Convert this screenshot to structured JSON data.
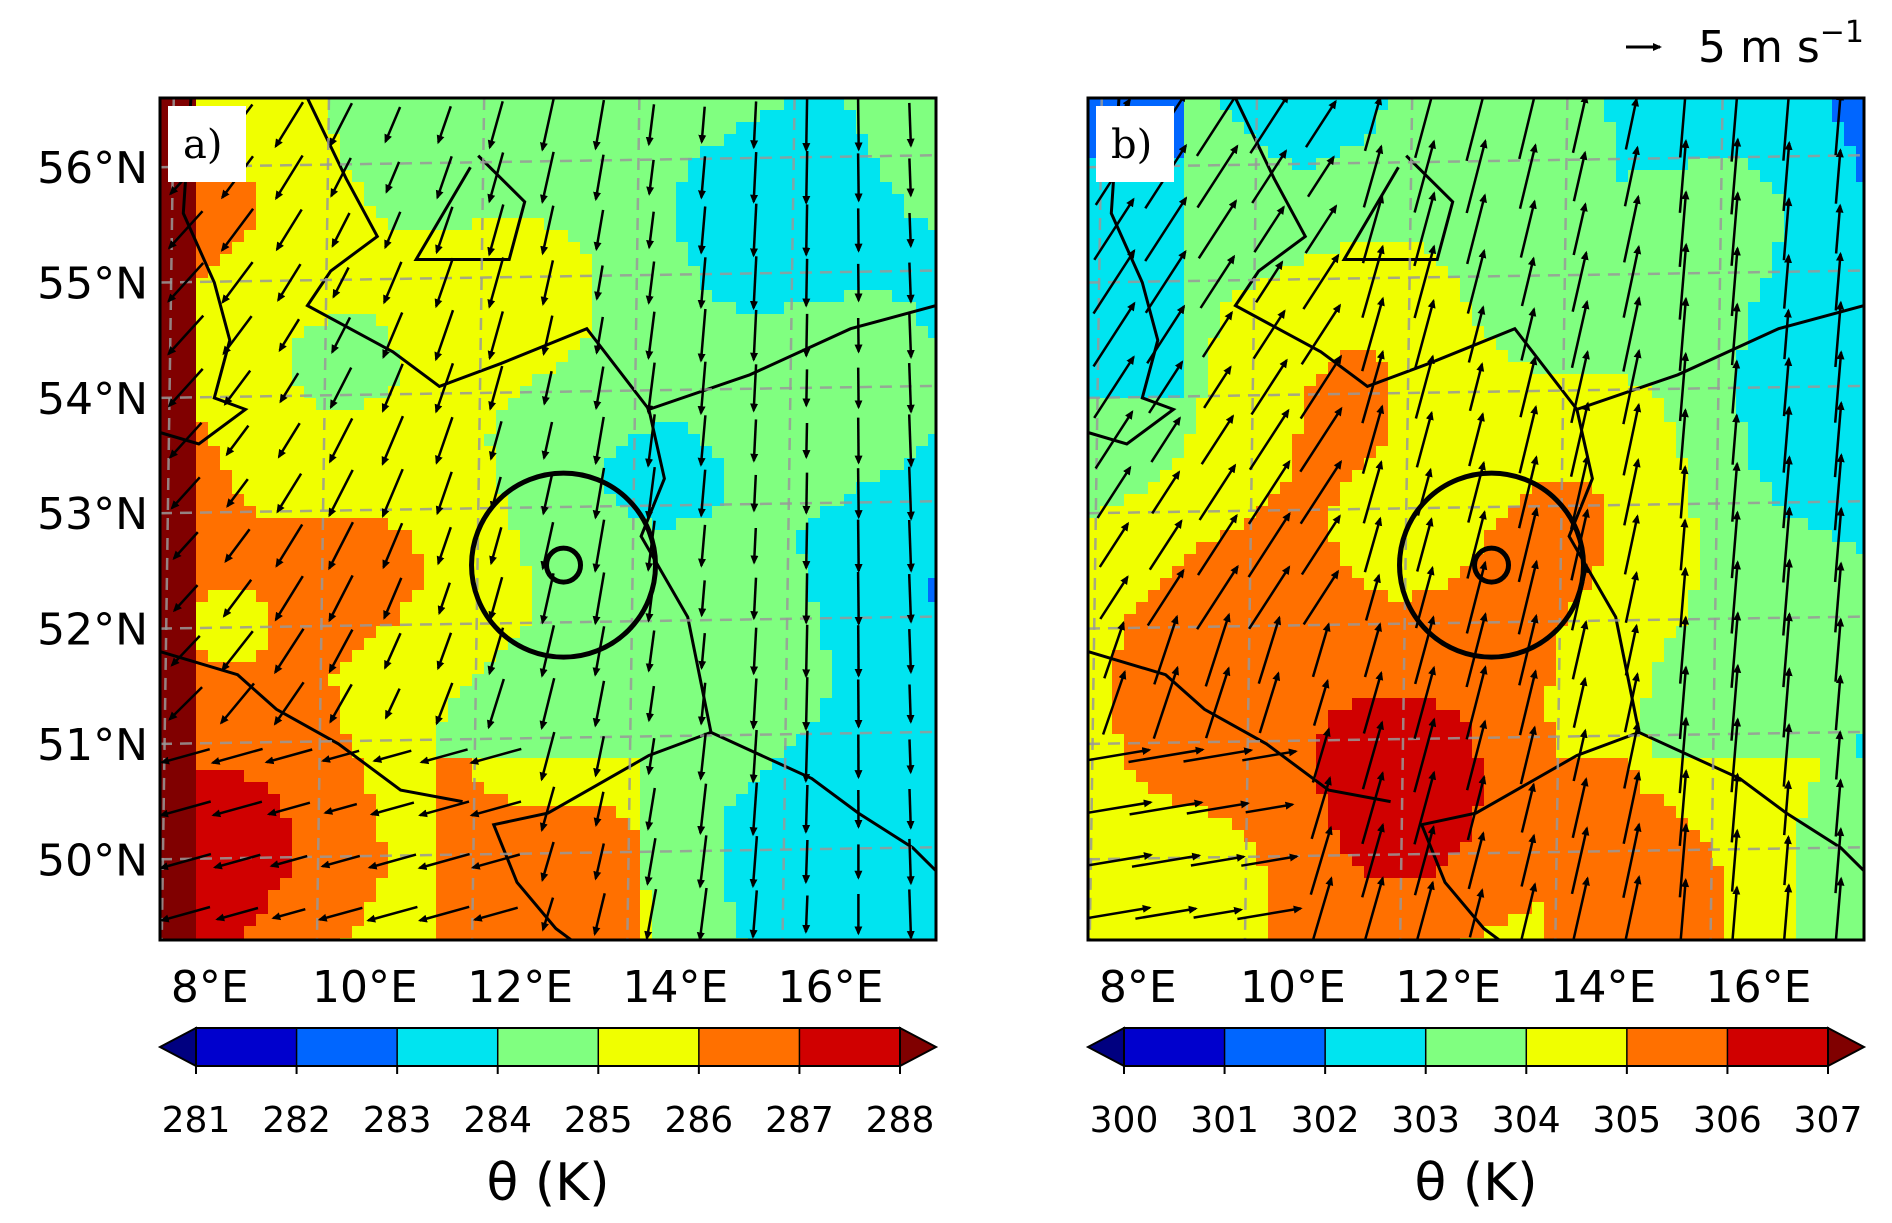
{
  "figure": {
    "key": {
      "text": "5 m s",
      "sup": "−1"
    },
    "panels": [
      {
        "label": "a)",
        "cbar_label": "θ (K)",
        "levels": [
          281,
          282,
          283,
          284,
          285,
          286,
          287,
          288
        ],
        "level_labels": [
          "281",
          "282",
          "283",
          "284",
          "285",
          "286",
          "287",
          "288"
        ],
        "extend": "both"
      },
      {
        "label": "b)",
        "cbar_label": "θ (K)",
        "levels": [
          300,
          301,
          302,
          303,
          304,
          305,
          306,
          307
        ],
        "level_labels": [
          "300",
          "301",
          "302",
          "303",
          "304",
          "305",
          "306",
          "307"
        ],
        "extend": "both"
      }
    ],
    "lat_labels": [
      "56°N",
      "55°N",
      "54°N",
      "53°N",
      "52°N",
      "51°N",
      "50°N"
    ],
    "lon_labels": [
      "8°E",
      "10°E",
      "12°E",
      "14°E",
      "16°E"
    ],
    "lat_values": [
      56,
      55,
      54,
      53,
      52,
      51,
      50
    ],
    "lon_values": [
      8,
      10,
      12,
      14,
      16
    ],
    "extent": {
      "lon": [
        7.9,
        17.9
      ],
      "lat": [
        49.3,
        56.6
      ]
    },
    "center": {
      "lon": 13.1,
      "lat": 52.55
    },
    "colors": {
      "below": "#000080",
      "bins": [
        "#0000cd",
        "#0066ff",
        "#00e4f0",
        "#80ff80",
        "#f0ff00",
        "#ff7000",
        "#d00000"
      ],
      "above": "#800000",
      "grid": "#999999"
    }
  }
}
